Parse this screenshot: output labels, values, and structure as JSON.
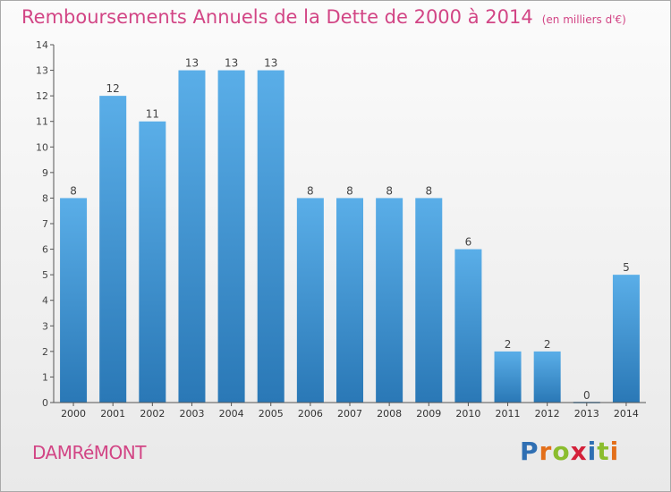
{
  "header": {
    "title": "Remboursements Annuels de la Dette de 2000 à 2014",
    "unit": "(en milliers d'€)"
  },
  "footer": {
    "commune": "DAMRéMONT",
    "logo_text": "Proxiti"
  },
  "colors": {
    "title": "#d24585",
    "bar_top": "#5aaee8",
    "bar_bottom": "#2a78b6",
    "logo_letters": [
      "#2f6fb3",
      "#e36f1a",
      "#8bbd2e",
      "#d4213a",
      "#2f6fb3",
      "#8bbd2e",
      "#e36f1a"
    ]
  },
  "chart_data": {
    "type": "bar",
    "categories": [
      "2000",
      "2001",
      "2002",
      "2003",
      "2004",
      "2005",
      "2006",
      "2007",
      "2008",
      "2009",
      "2010",
      "2011",
      "2012",
      "2013",
      "2014"
    ],
    "values": [
      8,
      12,
      11,
      13,
      13,
      13,
      8,
      8,
      8,
      8,
      6,
      2,
      2,
      0,
      5
    ],
    "data_labels": [
      "8",
      "12",
      "11",
      "13",
      "13",
      "13",
      "8",
      "8",
      "8",
      "8",
      "6",
      "2",
      "2",
      "0",
      "5"
    ],
    "y_ticks": [
      0,
      1,
      2,
      3,
      4,
      5,
      6,
      7,
      8,
      9,
      10,
      11,
      12,
      13,
      14
    ],
    "ylim": [
      0,
      14
    ],
    "grid": false,
    "legend": "none",
    "title": "Remboursements Annuels de la Dette de 2000 à 2014",
    "xlabel": "",
    "ylabel": ""
  }
}
